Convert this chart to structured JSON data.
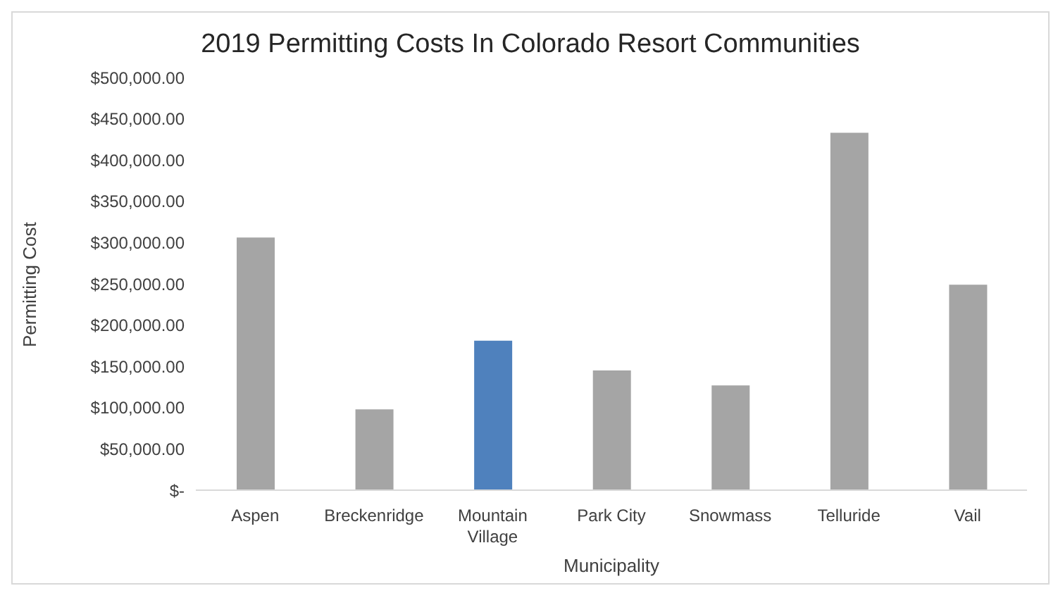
{
  "chart_data": {
    "type": "bar",
    "title": "2019 Permitting Costs In Colorado Resort Communities",
    "xlabel": "Municipality",
    "ylabel": "Permitting Cost",
    "categories": [
      "Aspen",
      "Breckenridge",
      "Mountain Village",
      "Park City",
      "Snowmass",
      "Telluride",
      "Vail"
    ],
    "values": [
      306000,
      98000,
      181000,
      145000,
      127000,
      433000,
      249000
    ],
    "colors": [
      "#a5a5a5",
      "#a5a5a5",
      "#4f81bd",
      "#a5a5a5",
      "#a5a5a5",
      "#a5a5a5",
      "#a5a5a5"
    ],
    "ylim": [
      0,
      500000
    ],
    "yticks": [
      {
        "value": 0,
        "label": "$-"
      },
      {
        "value": 50000,
        "label": "$50,000.00"
      },
      {
        "value": 100000,
        "label": "$100,000.00"
      },
      {
        "value": 150000,
        "label": "$150,000.00"
      },
      {
        "value": 200000,
        "label": "$200,000.00"
      },
      {
        "value": 250000,
        "label": "$250,000.00"
      },
      {
        "value": 300000,
        "label": "$300,000.00"
      },
      {
        "value": 350000,
        "label": "$350,000.00"
      },
      {
        "value": 400000,
        "label": "$400,000.00"
      },
      {
        "value": 450000,
        "label": "$450,000.00"
      },
      {
        "value": 500000,
        "label": "$500,000.00"
      }
    ],
    "grid": false,
    "legend": false
  }
}
